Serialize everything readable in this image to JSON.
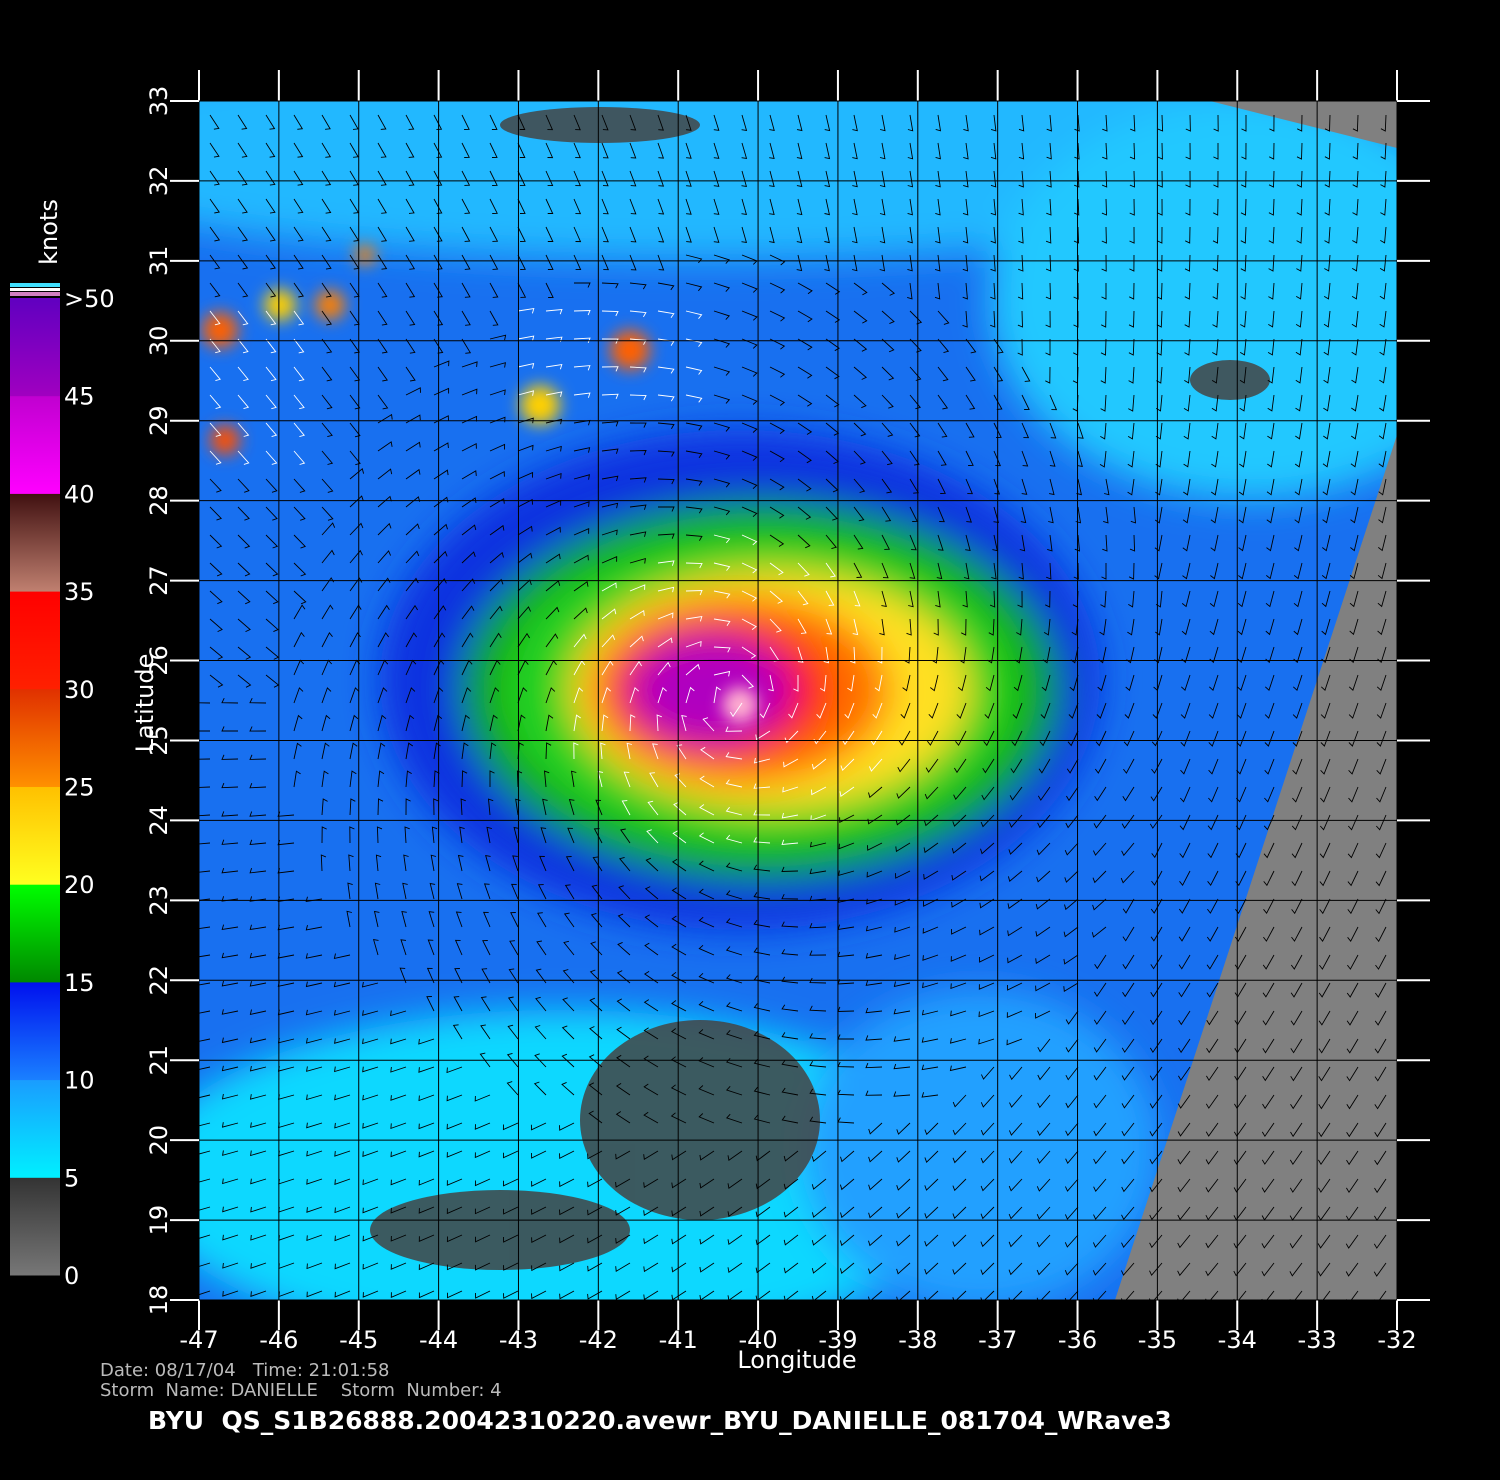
{
  "chart_data": {
    "type": "map",
    "x_label": "Longitude",
    "y_label": "Latitude",
    "xlim": [
      -47,
      -32
    ],
    "ylim": [
      18,
      33
    ],
    "xticks": [
      -47,
      -46,
      -45,
      -44,
      -43,
      -42,
      -41,
      -40,
      -39,
      -38,
      -37,
      -36,
      -35,
      -34,
      -33,
      -32
    ],
    "yticks": [
      18,
      19,
      20,
      21,
      22,
      23,
      24,
      25,
      26,
      27,
      28,
      29,
      30,
      31,
      32,
      33
    ],
    "grid": true,
    "colorbar": {
      "label": "knots",
      "ticks": [
        0,
        5,
        10,
        15,
        20,
        25,
        30,
        35,
        40,
        45,
        {
          "value": 50,
          "label": ">50"
        }
      ],
      "colors": [
        [
          "#777777",
          "#333333"
        ],
        [
          "#00f0ff",
          "#1a9cff"
        ],
        [
          "#1a80ff",
          "#0010ee"
        ],
        [
          "#008800",
          "#00ff00"
        ],
        [
          "#ffff20",
          "#ffc000"
        ],
        [
          "#ff9000",
          "#e03000"
        ],
        [
          "#ff2000",
          "#ff0000"
        ],
        [
          "#c08070",
          "#401010"
        ],
        [
          "#ff00ff",
          "#c000d0"
        ],
        [
          "#a000c0",
          "#6000c0"
        ]
      ]
    },
    "footer": {
      "date_line": "Date: 08/17/04   Time: 21:01:58",
      "storm_line": "Storm  Name: DANIELLE    Storm  Number: 4",
      "title": "BYU  QS_S1B26888.20042310220.avewr_BYU_DANIELLE_081704_WRave3"
    }
  }
}
